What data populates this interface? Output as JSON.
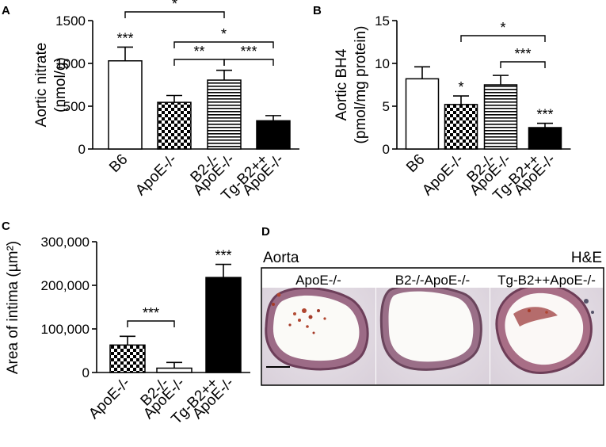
{
  "panels": {
    "a": {
      "letter": "A"
    },
    "b": {
      "letter": "B"
    },
    "c": {
      "letter": "C"
    },
    "d": {
      "letter": "D",
      "top_left_label": "Aorta",
      "top_right_label": "H&E",
      "images": [
        {
          "label": "ApoE-/-"
        },
        {
          "label": "B2-/-ApoE-/-"
        },
        {
          "label": "Tg-B2++ApoE-/-"
        }
      ]
    }
  },
  "chart_data": [
    {
      "panel": "A",
      "type": "bar",
      "ylabel_line1": "Aortic nitrate",
      "ylabel_line2": "(nmol/g)",
      "ylim": [
        0,
        1500
      ],
      "yticks": [
        0,
        500,
        1000,
        1500
      ],
      "categories": [
        {
          "lines": [
            "B6"
          ],
          "value": 1030,
          "error": 160,
          "pattern": "white",
          "star": "***"
        },
        {
          "lines": [
            "ApoE-/-"
          ],
          "value": 545,
          "error": 80,
          "pattern": "checker",
          "star": ""
        },
        {
          "lines": [
            "B2-/-",
            "ApoE-/-"
          ],
          "value": 805,
          "error": 115,
          "pattern": "hstripe",
          "star": ""
        },
        {
          "lines": [
            "Tg-B2++",
            "ApoE-/-"
          ],
          "value": 330,
          "error": 60,
          "pattern": "black",
          "star": ""
        }
      ],
      "comparisons": [
        {
          "from": 0,
          "to": 2,
          "label": "*",
          "level": 2
        },
        {
          "from": 1,
          "to": 3,
          "label": "*",
          "level": 1
        },
        {
          "from": 1,
          "to": 2,
          "label": "**",
          "level": 0
        },
        {
          "from": 2,
          "to": 3,
          "label": "***",
          "level": 0
        }
      ]
    },
    {
      "panel": "B",
      "type": "bar",
      "ylabel_line1": "Aortic BH4",
      "ylabel_line2": "(pmol/mg protein)",
      "ylim": [
        0,
        15
      ],
      "yticks": [
        0,
        5,
        10,
        15
      ],
      "categories": [
        {
          "lines": [
            "B6"
          ],
          "value": 8.2,
          "error": 1.4,
          "pattern": "white",
          "star": ""
        },
        {
          "lines": [
            "ApoE-/-"
          ],
          "value": 5.2,
          "error": 1.0,
          "pattern": "checker",
          "star": "*"
        },
        {
          "lines": [
            "B2-/-",
            "ApoE-/-"
          ],
          "value": 7.5,
          "error": 1.1,
          "pattern": "hstripe",
          "star": ""
        },
        {
          "lines": [
            "Tg-B2++",
            "ApoE-/-"
          ],
          "value": 2.5,
          "error": 0.5,
          "pattern": "black",
          "star": "***"
        }
      ],
      "comparisons": [
        {
          "from": 1,
          "to": 3,
          "label": "*",
          "level": 1
        },
        {
          "from": 2,
          "to": 3,
          "label": "***",
          "level": 0
        }
      ]
    },
    {
      "panel": "C",
      "type": "bar",
      "ylabel_line1": "Area of intima (µm²)",
      "ylim": [
        0,
        300000
      ],
      "yticks": [
        0,
        100000,
        200000,
        300000
      ],
      "ytick_labels": [
        "0",
        "100,000",
        "200,000",
        "300,000"
      ],
      "categories": [
        {
          "lines": [
            "ApoE-/-"
          ],
          "value": 63000,
          "error": 20000,
          "pattern": "checker",
          "star": ""
        },
        {
          "lines": [
            "B2-/-",
            "ApoE-/-"
          ],
          "value": 10000,
          "error": 13000,
          "pattern": "white",
          "star": ""
        },
        {
          "lines": [
            "Tg-B2++",
            "ApoE-/-"
          ],
          "value": 218000,
          "error": 30000,
          "pattern": "black",
          "star": "***"
        }
      ],
      "comparisons": [
        {
          "from": 0,
          "to": 1,
          "label": "***",
          "level": 0
        }
      ]
    }
  ]
}
